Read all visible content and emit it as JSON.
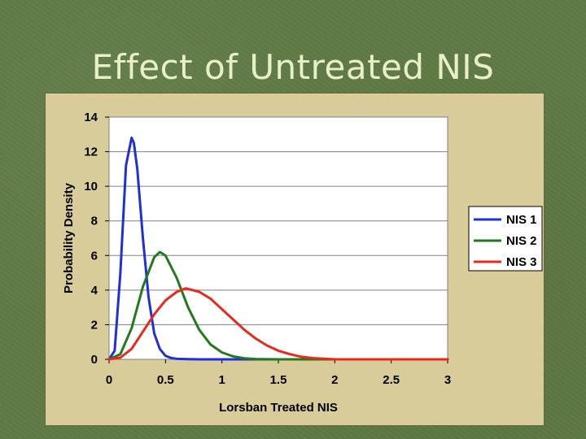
{
  "slide": {
    "title": "Effect of Untreated NIS"
  },
  "chart_data": {
    "type": "line",
    "title": "",
    "xlabel": "Lorsban Treated NIS",
    "ylabel": "Probability Density",
    "xlim": [
      0,
      3
    ],
    "ylim": [
      0,
      14
    ],
    "xticks": [
      "0",
      "0.5",
      "1",
      "1.5",
      "2",
      "2.5",
      "3"
    ],
    "yticks": [
      "0",
      "2",
      "4",
      "6",
      "8",
      "10",
      "12",
      "14"
    ],
    "grid": "horizontal",
    "legend_position": "right",
    "series": [
      {
        "name": "NIS 1",
        "color": "#1f2fd9",
        "x": [
          0,
          0.05,
          0.1,
          0.15,
          0.2,
          0.22,
          0.25,
          0.3,
          0.35,
          0.4,
          0.45,
          0.5,
          0.55,
          0.6,
          0.7,
          0.8,
          1.0,
          3.0
        ],
        "y": [
          0,
          0.5,
          5.0,
          11.2,
          12.8,
          12.5,
          11.0,
          7.0,
          3.6,
          1.5,
          0.6,
          0.2,
          0.08,
          0.03,
          0.01,
          0,
          0,
          0
        ]
      },
      {
        "name": "NIS 2",
        "color": "#237a1e",
        "x": [
          0,
          0.1,
          0.2,
          0.3,
          0.4,
          0.45,
          0.5,
          0.6,
          0.7,
          0.8,
          0.9,
          1.0,
          1.1,
          1.2,
          1.3,
          1.5,
          3.0
        ],
        "y": [
          0,
          0.3,
          1.8,
          4.2,
          5.9,
          6.2,
          6.0,
          4.7,
          3.0,
          1.7,
          0.85,
          0.4,
          0.17,
          0.06,
          0.02,
          0,
          0
        ]
      },
      {
        "name": "NIS 3",
        "color": "#e8291c",
        "x": [
          0,
          0.1,
          0.2,
          0.3,
          0.4,
          0.5,
          0.6,
          0.68,
          0.8,
          0.9,
          1.0,
          1.1,
          1.2,
          1.3,
          1.4,
          1.5,
          1.6,
          1.7,
          1.8,
          2.0,
          3.0
        ],
        "y": [
          0,
          0.1,
          0.6,
          1.6,
          2.6,
          3.4,
          3.9,
          4.1,
          3.9,
          3.5,
          2.9,
          2.3,
          1.7,
          1.2,
          0.8,
          0.5,
          0.3,
          0.15,
          0.07,
          0,
          0
        ]
      }
    ]
  }
}
